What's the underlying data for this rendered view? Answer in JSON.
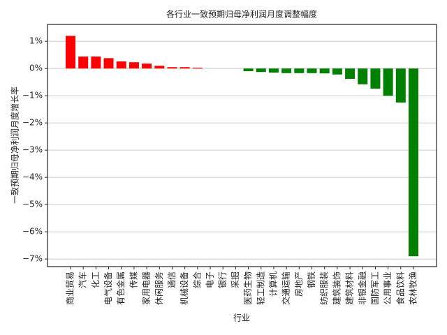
{
  "chart_data": {
    "type": "bar",
    "title": "各行业一致预期归母净利润月度调整幅度",
    "x_label": "行业",
    "y_label": "一致预期归母净利润月度增长率",
    "categories": [
      "商业贸易",
      "汽车",
      "化工",
      "电气设备",
      "有色金属",
      "传媒",
      "家用电器",
      "休闲服务",
      "通信",
      "机械设备",
      "综合",
      "电子",
      "银行",
      "采掘",
      "医药生物",
      "轻工制造",
      "计算机",
      "交通运输",
      "房地产",
      "钢铁",
      "纺织服装",
      "建筑装饰",
      "建筑材料",
      "非银金融",
      "国防军工",
      "公用事业",
      "食品饮料",
      "农林牧渔"
    ],
    "values": [
      1.2,
      0.44,
      0.44,
      0.38,
      0.26,
      0.23,
      0.18,
      0.1,
      0.05,
      0.05,
      0.03,
      0,
      0,
      0,
      -0.1,
      -0.13,
      -0.15,
      -0.17,
      -0.17,
      -0.17,
      -0.18,
      -0.22,
      -0.38,
      -0.58,
      -0.74,
      -1.0,
      -1.25,
      -6.9
    ],
    "positive_color": "#ff0000",
    "negative_color": "#008000",
    "ylim": [
      -7.28,
      1.62
    ],
    "yticks": [
      {
        "value": 1,
        "label": "1%"
      },
      {
        "value": 0,
        "label": "0%"
      },
      {
        "value": -1,
        "label": "−1%"
      },
      {
        "value": -2,
        "label": "−2%"
      },
      {
        "value": -3,
        "label": "−3%"
      },
      {
        "value": -4,
        "label": "−4%"
      },
      {
        "value": -5,
        "label": "−5%"
      },
      {
        "value": -6,
        "label": "−6%"
      },
      {
        "value": -7,
        "label": "−7%"
      }
    ],
    "grid": true
  }
}
